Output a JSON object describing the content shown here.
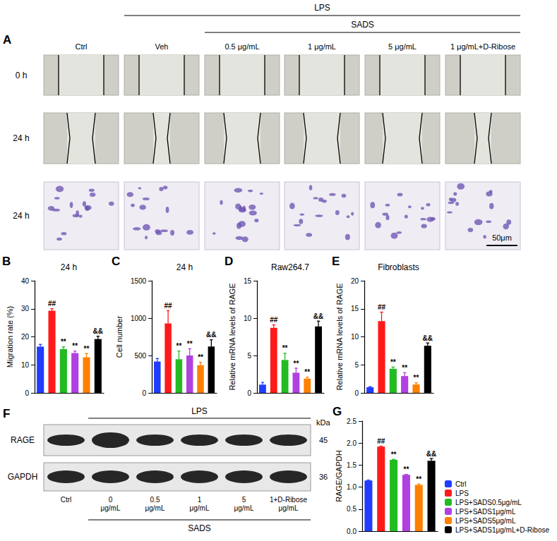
{
  "chart_data": [
    {
      "panel": "B",
      "type": "bar",
      "title": "24 h",
      "ylabel": "Migration rate (%)",
      "categories": [
        "Ctrl",
        "LPS",
        "LPS+SADS0.5μg/mL",
        "LPS+SADS1μg/mL",
        "LPS+SADS5μg/mL",
        "LPS+SADS1μg/mL+D-Ribose"
      ],
      "values": [
        16.5,
        29.3,
        15.6,
        14.2,
        12.7,
        19.2
      ],
      "errors": [
        0.8,
        0.7,
        0.8,
        0.7,
        1.3,
        1.0
      ],
      "annotations": [
        null,
        "##",
        "**",
        "**",
        "**",
        "&&"
      ],
      "colors": [
        "#1f3cff",
        "#ff1a1a",
        "#22bb22",
        "#b040e0",
        "#ff8000",
        "#000000"
      ],
      "ylim": [
        0,
        40
      ],
      "yticks": [
        0,
        10,
        20,
        30,
        40
      ],
      "grid": false,
      "tick_labels": "y"
    },
    {
      "panel": "C",
      "type": "bar",
      "title": "24 h",
      "ylabel": "Cell number",
      "categories": [
        "Ctrl",
        "LPS",
        "LPS+SADS0.5μg/mL",
        "LPS+SADS1μg/mL",
        "LPS+SADS5μg/mL",
        "LPS+SADS1μg/mL+D-Ribose"
      ],
      "values": [
        420,
        930,
        450,
        500,
        370,
        620
      ],
      "errors": [
        40,
        170,
        110,
        90,
        40,
        90
      ],
      "annotations": [
        null,
        "##",
        "**",
        "**",
        "**",
        "&&"
      ],
      "colors": [
        "#1f3cff",
        "#ff1a1a",
        "#22bb22",
        "#b040e0",
        "#ff8000",
        "#000000"
      ],
      "ylim": [
        0,
        1500
      ],
      "yticks": [
        0,
        500,
        1000,
        1500
      ],
      "grid": false,
      "tick_labels": "y"
    },
    {
      "panel": "D",
      "type": "bar",
      "title": "Raw264.7",
      "ylabel": "Relative mRNA levels of RAGE",
      "categories": [
        "Ctrl",
        "LPS",
        "LPS+SADS0.5μg/mL",
        "LPS+SADS1μg/mL",
        "LPS+SADS5μg/mL",
        "LPS+SADS1μg/mL+D-Ribose"
      ],
      "values": [
        1.1,
        8.7,
        4.4,
        2.7,
        1.9,
        8.9
      ],
      "errors": [
        0.3,
        0.4,
        0.9,
        0.6,
        0.2,
        0.7
      ],
      "annotations": [
        null,
        "##",
        "**",
        "**",
        "**",
        "&&"
      ],
      "colors": [
        "#1f3cff",
        "#ff1a1a",
        "#22bb22",
        "#b040e0",
        "#ff8000",
        "#000000"
      ],
      "ylim": [
        0,
        15
      ],
      "yticks": [
        0,
        5,
        10,
        15
      ],
      "grid": false,
      "tick_labels": "y"
    },
    {
      "panel": "E",
      "type": "bar",
      "title": "Fibroblasts",
      "ylabel": "Relative mRNA levels of RAGE",
      "categories": [
        "Ctrl",
        "LPS",
        "LPS+SADS0.5μg/mL",
        "LPS+SADS1μg/mL",
        "LPS+SADS5μg/mL",
        "LPS+SADS1μg/mL+D-Ribose"
      ],
      "values": [
        1.0,
        12.8,
        4.3,
        3.0,
        1.5,
        8.4
      ],
      "errors": [
        0.1,
        1.6,
        0.3,
        0.6,
        0.3,
        0.5
      ],
      "annotations": [
        null,
        "##",
        "**",
        "**",
        "**",
        "&&"
      ],
      "colors": [
        "#1f3cff",
        "#ff1a1a",
        "#22bb22",
        "#b040e0",
        "#ff8000",
        "#000000"
      ],
      "ylim": [
        0,
        20
      ],
      "yticks": [
        0,
        5,
        10,
        15,
        20
      ],
      "grid": false,
      "tick_labels": "y"
    },
    {
      "panel": "G",
      "type": "bar",
      "ylabel": "RAGE/GAPDH",
      "categories": [
        "Ctrl",
        "LPS",
        "LPS+SADS0.5μg/mL",
        "LPS+SADS1μg/mL",
        "LPS+SADS5μg/mL",
        "LPS+SADS1μg/mL+D-Ribose"
      ],
      "values": [
        1.15,
        1.92,
        1.62,
        1.28,
        1.05,
        1.6
      ],
      "errors": [
        0.01,
        0.01,
        0.01,
        0.01,
        0.02,
        0.05
      ],
      "annotations": [
        null,
        "##",
        "**",
        "**",
        "**",
        "&&"
      ],
      "colors": [
        "#1f3cff",
        "#ff1a1a",
        "#22bb22",
        "#b040e0",
        "#ff8000",
        "#000000"
      ],
      "ylim": [
        0,
        2.5
      ],
      "yticks": [
        {
          "value": 0,
          "label": "0.0"
        },
        {
          "value": 0.5,
          "label": "0.5"
        },
        {
          "value": 1,
          "label": "1.0"
        },
        {
          "value": 1.5,
          "label": "1.5"
        },
        {
          "value": 2,
          "label": "2.0"
        },
        {
          "value": 2.5,
          "label": "2.5"
        }
      ],
      "grid": false,
      "tick_labels": "y",
      "legend": "right"
    }
  ],
  "panel_A": {
    "letter": "A",
    "group_labels": [
      "LPS",
      "SADS"
    ],
    "columns": [
      "Ctrl",
      "Veh",
      "0.5 μg/mL",
      "1 μg/mL",
      "5 μg/mL",
      "1 μg/mL+D-Ribose"
    ],
    "rows": [
      "0 h",
      "24 h",
      "24 h"
    ],
    "scale_bar": "50μm"
  },
  "panel_F": {
    "letter": "F",
    "header": "LPS",
    "footer": "SADS",
    "unit_label": "kDa",
    "blots": [
      {
        "label": "RAGE",
        "kda": 45
      },
      {
        "label": "GAPDH",
        "kda": 36
      }
    ],
    "lanes": [
      "Ctrl",
      "0 μg/mL",
      "0.5 μg/mL",
      "1 μg/mL",
      "5 μg/mL",
      "1+D-Ribose μg/mL"
    ]
  }
}
